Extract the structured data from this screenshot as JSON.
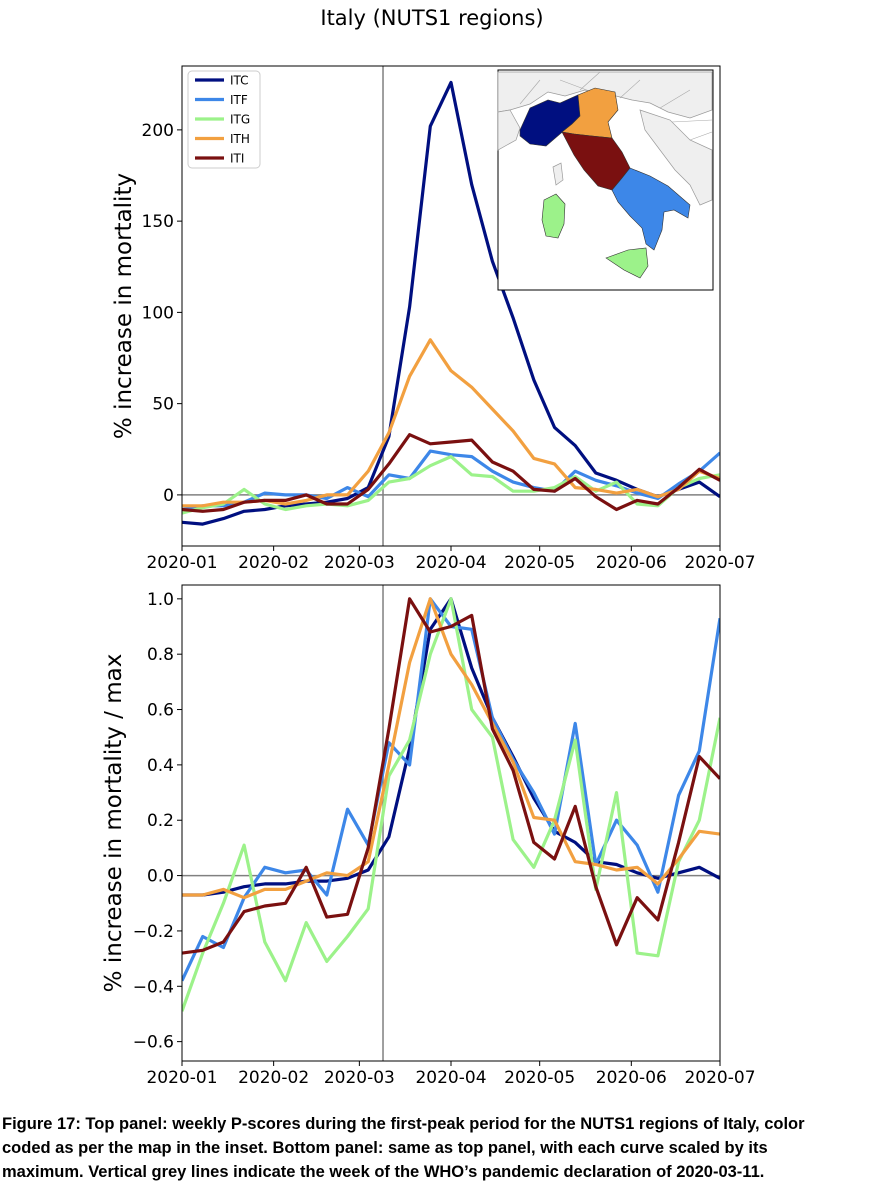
{
  "title": "Italy (NUTS1 regions)",
  "caption": {
    "lines": [
      "Figure 17: Top panel: weekly P-scores during the first-peak period for the NUTS1 regions of Italy, color",
      "coded as per the map in the inset. Bottom panel: same as top panel, with each curve scaled by its",
      "maximum. Vertical grey lines indicate the week of the WHO’s pandemic declaration of 2020-03-11."
    ]
  },
  "colors": {
    "ITC": "#000f80",
    "ITF": "#3d87e8",
    "ITG": "#9cf28a",
    "ITH": "#f2a040",
    "ITI": "#7a1010"
  },
  "inset_map": {
    "regions": [
      "ITC",
      "ITF",
      "ITG",
      "ITH",
      "ITI"
    ],
    "land_color": "#f0f0f0",
    "sea_color": "#ffffff"
  },
  "chart_data": [
    {
      "type": "line",
      "title": "",
      "xlabel": "",
      "ylabel": "% increase in mortality",
      "xlim": [
        "2020-01-01",
        "2020-07-01"
      ],
      "ylim": [
        -28,
        235
      ],
      "yticks": [
        0,
        50,
        100,
        150,
        200
      ],
      "xticks": [
        "2020-01",
        "2020-02",
        "2020-03",
        "2020-04",
        "2020-05",
        "2020-06",
        "2020-07"
      ],
      "hline": 0,
      "vline": "2020-03-09",
      "legend": "top-left",
      "x": [
        "2020-01-01",
        "2020-01-08",
        "2020-01-15",
        "2020-01-22",
        "2020-01-29",
        "2020-02-05",
        "2020-02-12",
        "2020-02-19",
        "2020-02-26",
        "2020-03-04",
        "2020-03-11",
        "2020-03-18",
        "2020-03-25",
        "2020-04-01",
        "2020-04-08",
        "2020-04-15",
        "2020-04-22",
        "2020-04-29",
        "2020-05-06",
        "2020-05-13",
        "2020-05-20",
        "2020-05-27",
        "2020-06-03",
        "2020-06-10",
        "2020-06-17",
        "2020-06-24",
        "2020-07-01"
      ],
      "series": [
        {
          "name": "ITC",
          "values": [
            -15,
            -16,
            -13,
            -9,
            -8,
            -6,
            -5,
            -4,
            -2,
            4,
            32,
            103,
            202,
            226,
            170,
            128,
            97,
            63,
            37,
            27,
            12,
            8,
            3,
            -1,
            3,
            7,
            -1
          ]
        },
        {
          "name": "ITF",
          "values": [
            -8,
            -6,
            -6,
            -4,
            1,
            0,
            0,
            -2,
            4,
            -1,
            11,
            9,
            24,
            22,
            21,
            13,
            7,
            4,
            2,
            13,
            8,
            5,
            1,
            -2,
            6,
            13,
            23
          ]
        },
        {
          "name": "ITG",
          "values": [
            -10,
            -7,
            -5,
            3,
            -5,
            -8,
            -6,
            -5,
            -6,
            -3,
            7,
            9,
            16,
            21,
            11,
            10,
            2,
            2,
            4,
            10,
            2,
            7,
            -5,
            -6,
            4,
            9,
            11
          ]
        },
        {
          "name": "ITH",
          "values": [
            -6,
            -6,
            -4,
            -4,
            -3,
            -5,
            -3,
            0,
            0,
            13,
            34,
            65,
            85,
            68,
            59,
            47,
            35,
            20,
            17,
            4,
            3,
            1,
            3,
            -1,
            3,
            13,
            9
          ]
        },
        {
          "name": "ITI",
          "values": [
            -8,
            -9,
            -8,
            -4,
            -3,
            -3,
            0,
            -5,
            -5,
            3,
            17,
            33,
            28,
            29,
            30,
            18,
            13,
            3,
            2,
            9,
            -1,
            -8,
            -3,
            -5,
            4,
            14,
            8
          ]
        }
      ]
    },
    {
      "type": "line",
      "title": "",
      "xlabel": "",
      "ylabel": "% increase in mortality / max",
      "xlim": [
        "2020-01-01",
        "2020-07-01"
      ],
      "ylim": [
        -0.67,
        1.05
      ],
      "yticks": [
        -0.6,
        -0.4,
        -0.2,
        0.0,
        0.2,
        0.4,
        0.6,
        0.8,
        1.0
      ],
      "xticks": [
        "2020-01",
        "2020-02",
        "2020-03",
        "2020-04",
        "2020-05",
        "2020-06",
        "2020-07"
      ],
      "hline": 0,
      "vline": "2020-03-09",
      "x": [
        "2020-01-01",
        "2020-01-08",
        "2020-01-15",
        "2020-01-22",
        "2020-01-29",
        "2020-02-05",
        "2020-02-12",
        "2020-02-19",
        "2020-02-26",
        "2020-03-04",
        "2020-03-11",
        "2020-03-18",
        "2020-03-25",
        "2020-04-01",
        "2020-04-08",
        "2020-04-15",
        "2020-04-22",
        "2020-04-29",
        "2020-05-06",
        "2020-05-13",
        "2020-05-20",
        "2020-05-27",
        "2020-06-03",
        "2020-06-10",
        "2020-06-17",
        "2020-06-24",
        "2020-07-01"
      ],
      "series": [
        {
          "name": "ITC",
          "values": [
            -0.07,
            -0.07,
            -0.06,
            -0.04,
            -0.03,
            -0.03,
            -0.02,
            -0.02,
            -0.01,
            0.02,
            0.14,
            0.46,
            0.89,
            1.0,
            0.75,
            0.57,
            0.43,
            0.28,
            0.16,
            0.12,
            0.05,
            0.04,
            0.01,
            -0.01,
            0.01,
            0.03,
            -0.01
          ]
        },
        {
          "name": "ITF",
          "values": [
            -0.38,
            -0.22,
            -0.26,
            -0.08,
            0.03,
            0.01,
            0.02,
            -0.07,
            0.24,
            0.11,
            0.48,
            0.4,
            1.0,
            0.9,
            0.89,
            0.57,
            0.42,
            0.3,
            0.15,
            0.55,
            0.04,
            0.2,
            0.11,
            -0.06,
            0.29,
            0.45,
            0.93
          ]
        },
        {
          "name": "ITG",
          "values": [
            -0.49,
            -0.28,
            -0.1,
            0.11,
            -0.24,
            -0.38,
            -0.17,
            -0.31,
            -0.22,
            -0.12,
            0.36,
            0.49,
            0.8,
            1.0,
            0.6,
            0.5,
            0.13,
            0.03,
            0.2,
            0.49,
            -0.05,
            0.3,
            -0.28,
            -0.29,
            0.05,
            0.2,
            0.57
          ]
        },
        {
          "name": "ITH",
          "values": [
            -0.07,
            -0.07,
            -0.05,
            -0.08,
            -0.05,
            -0.05,
            -0.02,
            0.01,
            0.0,
            0.05,
            0.4,
            0.77,
            1.0,
            0.8,
            0.69,
            0.55,
            0.41,
            0.21,
            0.2,
            0.05,
            0.04,
            0.02,
            0.03,
            -0.03,
            0.06,
            0.16,
            0.15
          ]
        },
        {
          "name": "ITI",
          "values": [
            -0.28,
            -0.27,
            -0.24,
            -0.13,
            -0.11,
            -0.1,
            0.03,
            -0.15,
            -0.14,
            0.1,
            0.53,
            1.0,
            0.88,
            0.9,
            0.94,
            0.53,
            0.38,
            0.12,
            0.06,
            0.25,
            -0.04,
            -0.25,
            -0.08,
            -0.16,
            0.12,
            0.43,
            0.35
          ]
        }
      ]
    }
  ]
}
